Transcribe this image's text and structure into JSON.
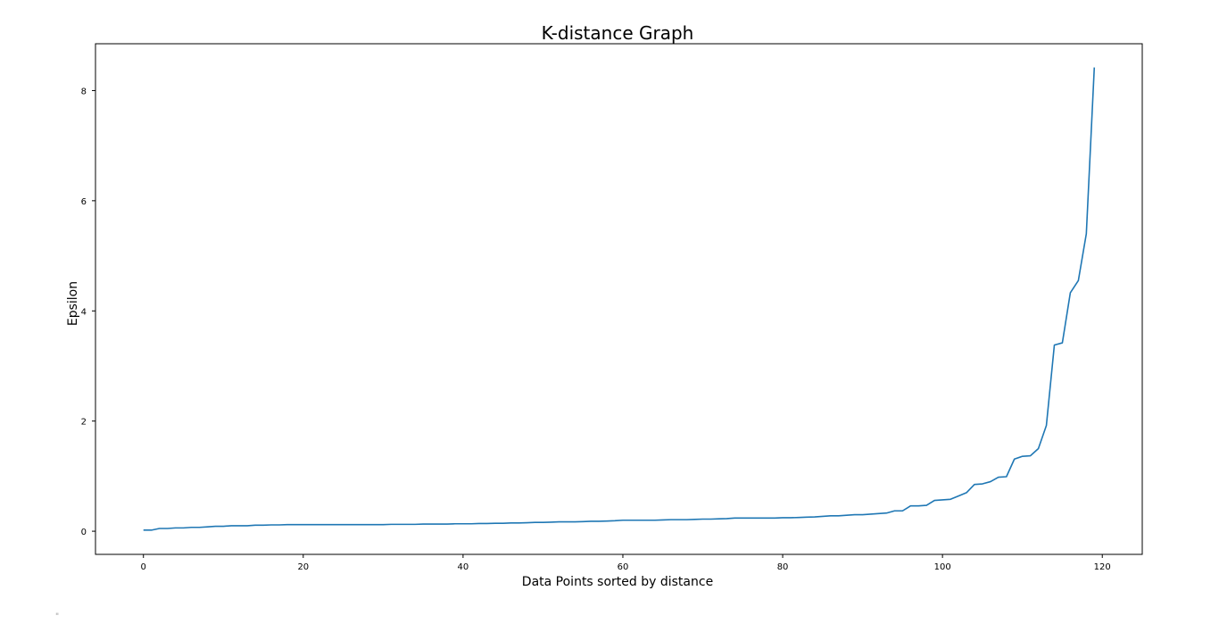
{
  "chart_data": {
    "type": "line",
    "title": "K-distance Graph",
    "xlabel": "Data Points sorted by distance",
    "ylabel": "Epsilon",
    "xlim": [
      -6,
      125
    ],
    "ylim": [
      -0.42,
      8.85
    ],
    "xticks": [
      0,
      20,
      40,
      60,
      80,
      100,
      120
    ],
    "yticks": [
      0,
      2,
      4,
      6,
      8
    ],
    "grid": false,
    "line_color": "#1f77b4",
    "series": [
      {
        "x": [
          0,
          1,
          2,
          3,
          4,
          5,
          6,
          7,
          8,
          9,
          10,
          11,
          12,
          13,
          14,
          15,
          16,
          17,
          18,
          19,
          20,
          21,
          22,
          23,
          24,
          25,
          26,
          27,
          28,
          29,
          30,
          31,
          32,
          33,
          34,
          35,
          36,
          37,
          38,
          39,
          40,
          41,
          42,
          43,
          44,
          45,
          46,
          47,
          48,
          49,
          50,
          51,
          52,
          53,
          54,
          55,
          56,
          57,
          58,
          59,
          60,
          61,
          62,
          63,
          64,
          65,
          66,
          67,
          68,
          69,
          70,
          71,
          72,
          73,
          74,
          75,
          76,
          77,
          78,
          79,
          80,
          81,
          82,
          83,
          84,
          85,
          86,
          87,
          88,
          89,
          90,
          91,
          92,
          93,
          94,
          95,
          96,
          97,
          98,
          99,
          100,
          101,
          102,
          103,
          104,
          105,
          106,
          107,
          108,
          109,
          110,
          111,
          112,
          113,
          114,
          115,
          116,
          117,
          118,
          119
        ],
        "values": [
          0.02,
          0.02,
          0.05,
          0.05,
          0.06,
          0.06,
          0.07,
          0.07,
          0.08,
          0.09,
          0.09,
          0.1,
          0.1,
          0.1,
          0.11,
          0.11,
          0.115,
          0.115,
          0.12,
          0.12,
          0.12,
          0.12,
          0.12,
          0.12,
          0.12,
          0.12,
          0.12,
          0.12,
          0.12,
          0.12,
          0.12,
          0.125,
          0.125,
          0.125,
          0.125,
          0.13,
          0.13,
          0.13,
          0.13,
          0.135,
          0.135,
          0.135,
          0.14,
          0.14,
          0.145,
          0.145,
          0.15,
          0.15,
          0.155,
          0.16,
          0.16,
          0.165,
          0.17,
          0.17,
          0.17,
          0.175,
          0.18,
          0.18,
          0.185,
          0.19,
          0.2,
          0.2,
          0.2,
          0.2,
          0.2,
          0.205,
          0.21,
          0.21,
          0.21,
          0.215,
          0.22,
          0.22,
          0.225,
          0.23,
          0.24,
          0.24,
          0.24,
          0.24,
          0.24,
          0.24,
          0.245,
          0.245,
          0.25,
          0.255,
          0.26,
          0.27,
          0.28,
          0.28,
          0.29,
          0.3,
          0.3,
          0.31,
          0.32,
          0.33,
          0.37,
          0.37,
          0.46,
          0.46,
          0.47,
          0.56,
          0.57,
          0.58,
          0.64,
          0.7,
          0.85,
          0.86,
          0.9,
          0.98,
          0.99,
          1.31,
          1.36,
          1.37,
          1.5,
          1.92,
          3.38,
          3.42,
          4.33,
          4.55,
          5.4,
          8.42
        ]
      }
    ]
  },
  "footer_glyph": "\""
}
